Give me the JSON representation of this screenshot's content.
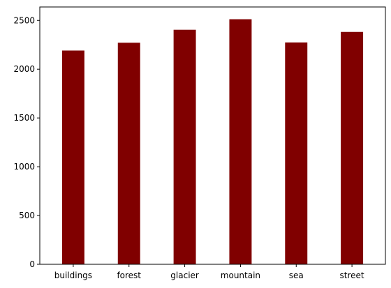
{
  "chart_data": {
    "type": "bar",
    "title": "",
    "xlabel": "",
    "ylabel": "",
    "categories": [
      "buildings",
      "forest",
      "glacier",
      "mountain",
      "sea",
      "street"
    ],
    "values": [
      2191,
      2271,
      2404,
      2512,
      2274,
      2382
    ],
    "ylim": [
      0,
      2637.6
    ],
    "yticks": [
      0,
      500,
      1000,
      1500,
      2000,
      2500
    ],
    "ytick_labels": [
      "0",
      "500",
      "1000",
      "1500",
      "2000",
      "2500"
    ],
    "bar_color": "#800000",
    "grid": false,
    "legend": "none"
  }
}
